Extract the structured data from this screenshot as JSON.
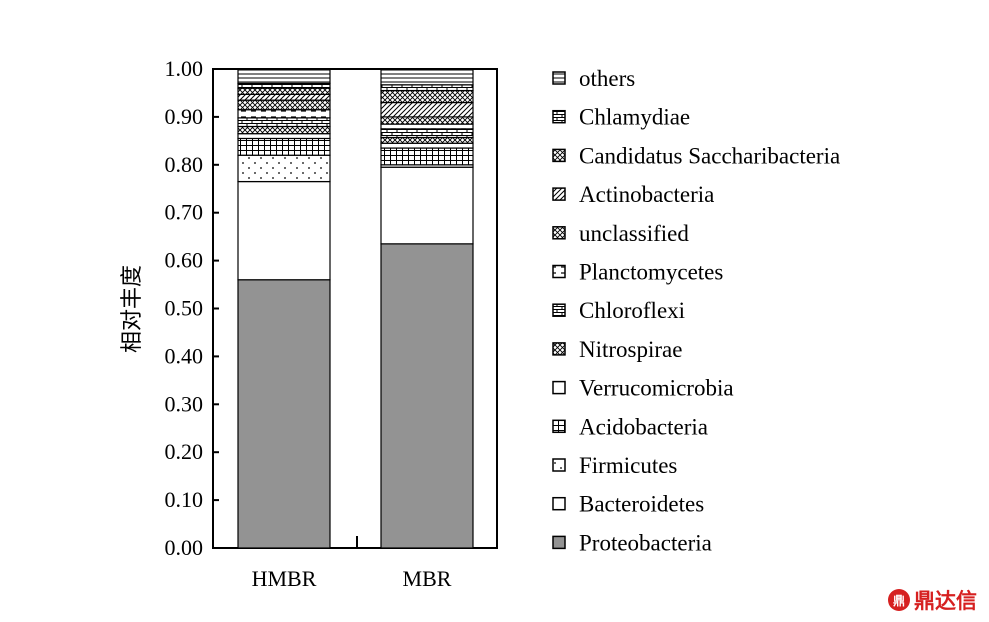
{
  "chart_data": {
    "type": "bar",
    "stacked": true,
    "categories": [
      "HMBR",
      "MBR"
    ],
    "ylabel": "相对丰度",
    "xlabel": "",
    "ylim": [
      0,
      1.0
    ],
    "y_ticks": [
      "0.00",
      "0.10",
      "0.20",
      "0.30",
      "0.40",
      "0.50",
      "0.60",
      "0.70",
      "0.80",
      "0.90",
      "1.00"
    ],
    "legend_position": "right",
    "series": [
      {
        "name": "Proteobacteria",
        "values": [
          0.56,
          0.635
        ],
        "pattern": "solid-gray"
      },
      {
        "name": "Bacteroidetes",
        "values": [
          0.205,
          0.16
        ],
        "pattern": "blank"
      },
      {
        "name": "Firmicutes",
        "values": [
          0.055,
          0.005
        ],
        "pattern": "dots"
      },
      {
        "name": "Acidobacteria",
        "values": [
          0.035,
          0.035
        ],
        "pattern": "grid"
      },
      {
        "name": "Verrucomicrobia",
        "values": [
          0.01,
          0.01
        ],
        "pattern": "blank"
      },
      {
        "name": "Nitrospirae",
        "values": [
          0.015,
          0.012
        ],
        "pattern": "crosshatch"
      },
      {
        "name": "Chloroflexi",
        "values": [
          0.018,
          0.018
        ],
        "pattern": "brick"
      },
      {
        "name": "Planctomycetes",
        "values": [
          0.017,
          0.01
        ],
        "pattern": "dashes"
      },
      {
        "name": "unclassified",
        "values": [
          0.02,
          0.015
        ],
        "pattern": "crosshatch"
      },
      {
        "name": "Actinobacteria",
        "values": [
          0.012,
          0.03
        ],
        "pattern": "diagonal"
      },
      {
        "name": "Candidatus Saccharibacteria",
        "values": [
          0.013,
          0.025
        ],
        "pattern": "crosshatch"
      },
      {
        "name": "Chlamydiae",
        "values": [
          0.01,
          0.012
        ],
        "pattern": "brick"
      },
      {
        "name": "others",
        "values": [
          0.03,
          0.033
        ],
        "pattern": "hlines"
      }
    ],
    "legend_order": [
      "others",
      "Chlamydiae",
      "Candidatus Saccharibacteria",
      "Actinobacteria",
      "unclassified",
      "Planctomycetes",
      "Chloroflexi",
      "Nitrospirae",
      "Verrucomicrobia",
      "Acidobacteria",
      "Firmicutes",
      "Bacteroidetes",
      "Proteobacteria"
    ]
  },
  "watermark": {
    "text": "鼎达信",
    "accent": "#d62020"
  }
}
